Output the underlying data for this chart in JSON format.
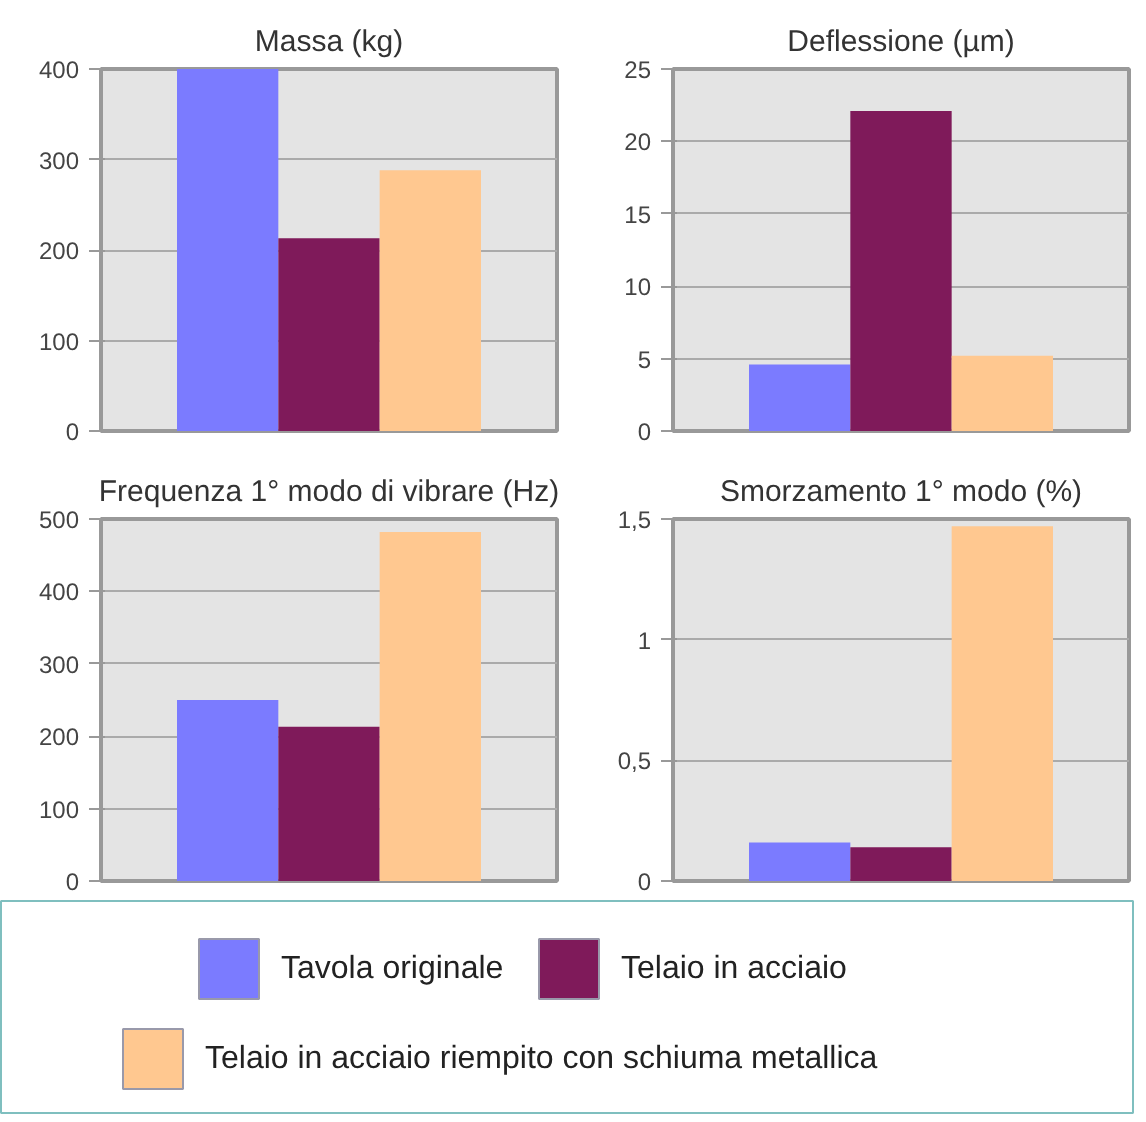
{
  "chart_data": [
    {
      "type": "bar",
      "title": "Massa (kg)",
      "categories": [
        null
      ],
      "ylim": [
        0,
        400
      ],
      "yticks": [
        0,
        100,
        200,
        300,
        400
      ],
      "grid": "y",
      "legend": "bottom",
      "series": [
        {
          "name": "Tavola originale",
          "color": "#7b7bff",
          "values": [
            400
          ]
        },
        {
          "name": "Telaio in acciaio",
          "color": "#7f1a5a",
          "values": [
            213
          ]
        },
        {
          "name": "Telaio in acciaio riempito con schiuma metallica",
          "color": "#ffc890",
          "values": [
            288
          ]
        }
      ]
    },
    {
      "type": "bar",
      "title": "Deflessione (µm)",
      "categories": [
        null
      ],
      "ylim": [
        0,
        25
      ],
      "yticks": [
        0,
        5,
        10,
        15,
        20,
        25
      ],
      "grid": "y",
      "series": [
        {
          "color": "#7b7bff",
          "values": [
            4.6
          ]
        },
        {
          "color": "#7f1a5a",
          "values": [
            22.1
          ]
        },
        {
          "color": "#ffc890",
          "values": [
            5.2
          ]
        }
      ]
    },
    {
      "type": "bar",
      "title": "Frequenza 1° modo di vibrare (Hz)",
      "categories": [
        null
      ],
      "ylim": [
        0,
        500
      ],
      "yticks": [
        0,
        100,
        200,
        300,
        400,
        500
      ],
      "grid": "y",
      "series": [
        {
          "color": "#7b7bff",
          "values": [
            250
          ]
        },
        {
          "color": "#7f1a5a",
          "values": [
            213
          ]
        },
        {
          "color": "#ffc890",
          "values": [
            482
          ]
        }
      ]
    },
    {
      "type": "bar",
      "title": "Smorzamento 1° modo (%)",
      "categories": [
        null
      ],
      "ylim": [
        0,
        1.5
      ],
      "yticks": [
        0,
        {
          "value": 0.5,
          "label": "0,5"
        },
        1,
        {
          "value": 1.5,
          "label": "1,5"
        }
      ],
      "grid": "y",
      "series": [
        {
          "color": "#7b7bff",
          "values": [
            0.16
          ]
        },
        {
          "color": "#7f1a5a",
          "values": [
            0.14
          ]
        },
        {
          "color": "#ffc890",
          "values": [
            1.47
          ]
        }
      ]
    }
  ]
}
